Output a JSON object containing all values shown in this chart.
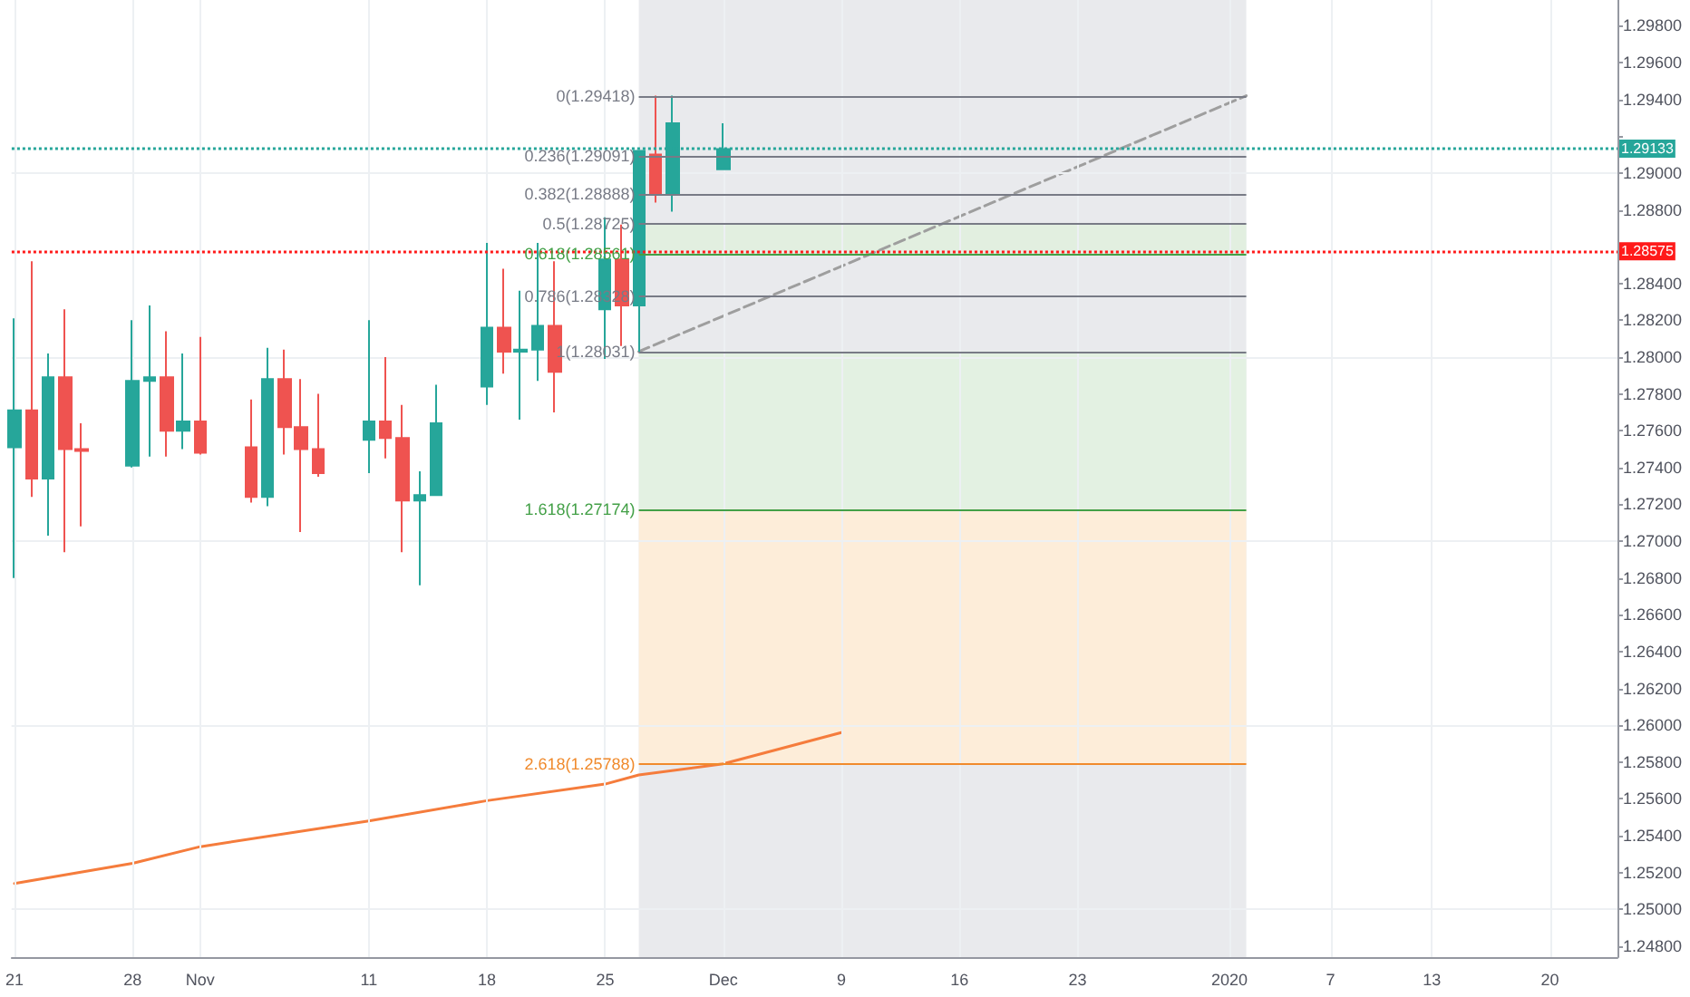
{
  "chart_data": {
    "type": "candlestick",
    "xlim": [
      "2019-10-20T20:00",
      "2020-01-24T00:00"
    ],
    "x": [
      "2019-10-21",
      "2019-10-22",
      "2019-10-23",
      "2019-10-24",
      "2019-10-25",
      "2019-10-28",
      "2019-10-29",
      "2019-10-30",
      "2019-10-31",
      "2019-11-01",
      "2019-11-04",
      "2019-11-05",
      "2019-11-06",
      "2019-11-07",
      "2019-11-08",
      "2019-11-11",
      "2019-11-12",
      "2019-11-13",
      "2019-11-14",
      "2019-11-15",
      "2019-11-18",
      "2019-11-19",
      "2019-11-20",
      "2019-11-21",
      "2019-11-22",
      "2019-11-25",
      "2019-11-26",
      "2019-11-27",
      "2019-11-28",
      "2019-11-29",
      "2019-12-02"
    ],
    "xticks": [
      {
        "value": "2019-10-21",
        "label": "21"
      },
      {
        "value": "2019-10-28",
        "label": "28"
      },
      {
        "value": "2019-11-01",
        "label": "Nov"
      },
      {
        "value": "2019-11-11",
        "label": "11"
      },
      {
        "value": "2019-11-18",
        "label": "18"
      },
      {
        "value": "2019-11-25",
        "label": "25"
      },
      {
        "value": "2019-12-02",
        "label": "Dec"
      },
      {
        "value": "2019-12-09",
        "label": "9"
      },
      {
        "value": "2019-12-16",
        "label": "16"
      },
      {
        "value": "2019-12-23",
        "label": "23"
      },
      {
        "value": "2020-01-01",
        "label": "2020"
      },
      {
        "value": "2020-01-07",
        "label": "7"
      },
      {
        "value": "2020-01-13",
        "label": "13"
      },
      {
        "value": "2020-01-20",
        "label": "20"
      }
    ],
    "ohlc": [
      [
        1.2751,
        1.2821,
        1.268,
        1.2771
      ],
      [
        1.2771,
        1.2852,
        1.2724,
        1.2734
      ],
      [
        1.2734,
        1.2802,
        1.2703,
        1.2789
      ],
      [
        1.2789,
        1.2826,
        1.2694,
        1.275
      ],
      [
        1.275,
        1.2764,
        1.2708,
        1.2749
      ],
      [
        1.2741,
        1.282,
        1.274,
        1.2787
      ],
      [
        1.2787,
        1.2828,
        1.2746,
        1.2789
      ],
      [
        1.2789,
        1.2814,
        1.2746,
        1.276
      ],
      [
        1.276,
        1.2802,
        1.275,
        1.2765
      ],
      [
        1.2765,
        1.2811,
        1.2747,
        1.2748
      ],
      [
        1.2751,
        1.2777,
        1.2721,
        1.2724
      ],
      [
        1.2724,
        1.2805,
        1.2719,
        1.2788
      ],
      [
        1.2788,
        1.2804,
        1.2747,
        1.2762
      ],
      [
        1.2762,
        1.2788,
        1.2705,
        1.275
      ],
      [
        1.275,
        1.278,
        1.2735,
        1.2737
      ],
      [
        1.2755,
        1.282,
        1.2737,
        1.2765
      ],
      [
        1.2765,
        1.28,
        1.2745,
        1.2756
      ],
      [
        1.2756,
        1.2774,
        1.2694,
        1.2722
      ],
      [
        1.2722,
        1.2738,
        1.2676,
        1.2725
      ],
      [
        1.2725,
        1.2785,
        1.2725,
        1.2764
      ],
      [
        1.2784,
        1.2862,
        1.2774,
        1.2816
      ],
      [
        1.2816,
        1.2848,
        1.2791,
        1.2803
      ],
      [
        1.2803,
        1.2836,
        1.2766,
        1.2804
      ],
      [
        1.2804,
        1.2862,
        1.2787,
        1.2817
      ],
      [
        1.2817,
        1.2852,
        1.277,
        1.2792
      ],
      [
        1.2826,
        1.2876,
        1.2799,
        1.2853
      ],
      [
        1.2853,
        1.2872,
        1.2806,
        1.2828
      ],
      [
        1.2828,
        1.2912,
        1.2803,
        1.2912
      ],
      [
        1.291,
        1.2942,
        1.2884,
        1.2889
      ],
      [
        1.2889,
        1.2942,
        1.2879,
        1.2927
      ],
      [
        1.2902,
        1.2927,
        1.2902,
        1.2913
      ]
    ],
    "colors": [
      "#26a69a",
      "#ef5350",
      "#26a69a",
      "#ef5350",
      "#ef5350",
      "#26a69a",
      "#26a69a",
      "#ef5350",
      "#26a69a",
      "#ef5350",
      "#ef5350",
      "#26a69a",
      "#ef5350",
      "#ef5350",
      "#ef5350",
      "#26a69a",
      "#ef5350",
      "#ef5350",
      "#26a69a",
      "#26a69a",
      "#26a69a",
      "#ef5350",
      "#26a69a",
      "#26a69a",
      "#ef5350",
      "#26a69a",
      "#ef5350",
      "#26a69a",
      "#ef5350",
      "#26a69a",
      "#26a69a"
    ],
    "series": [
      {
        "type": "line",
        "color": "#f57c3c",
        "x": [
          "2019-10-21",
          "2019-10-28",
          "2019-11-01",
          "2019-11-11",
          "2019-11-18",
          "2019-11-25",
          "2019-11-27",
          "2019-12-02",
          "2019-12-09"
        ],
        "values": [
          1.2514,
          1.2525,
          1.2534,
          1.2548,
          1.2559,
          1.2568,
          1.2573,
          1.2579,
          1.2596
        ]
      },
      {
        "type": "line",
        "color": "#9e9e9e",
        "line_style": "dashed",
        "x": [
          "2019-11-27",
          "2020-01-02"
        ],
        "values": [
          1.2803,
          1.2942
        ]
      }
    ],
    "ylim": [
      1.2474,
      1.2994
    ],
    "yticks": [
      {
        "value": 1.248,
        "label": "1.24800"
      },
      {
        "value": 1.25,
        "label": "1.25000"
      },
      {
        "value": 1.252,
        "label": "1.25200"
      },
      {
        "value": 1.254,
        "label": "1.25400"
      },
      {
        "value": 1.256,
        "label": "1.25600"
      },
      {
        "value": 1.258,
        "label": "1.25800"
      },
      {
        "value": 1.26,
        "label": "1.26000"
      },
      {
        "value": 1.262,
        "label": "1.26200"
      },
      {
        "value": 1.264,
        "label": "1.26400"
      },
      {
        "value": 1.266,
        "label": "1.26600"
      },
      {
        "value": 1.268,
        "label": "1.26800"
      },
      {
        "value": 1.27,
        "label": "1.27000"
      },
      {
        "value": 1.272,
        "label": "1.27200"
      },
      {
        "value": 1.274,
        "label": "1.27400"
      },
      {
        "value": 1.276,
        "label": "1.27600"
      },
      {
        "value": 1.278,
        "label": "1.27800"
      },
      {
        "value": 1.28,
        "label": "1.28000"
      },
      {
        "value": 1.282,
        "label": "1.28200"
      },
      {
        "value": 1.284,
        "label": "1.28400"
      },
      {
        "value": 1.286,
        "label": null
      },
      {
        "value": 1.288,
        "label": "1.28800"
      },
      {
        "value": 1.29,
        "label": "1.29000"
      },
      {
        "value": 1.292,
        "label": null
      },
      {
        "value": 1.294,
        "label": "1.29400"
      },
      {
        "value": 1.296,
        "label": "1.29600"
      },
      {
        "value": 1.298,
        "label": "1.29800"
      }
    ],
    "grid": true,
    "marker": "none",
    "bands": [
      {
        "axis": "x",
        "from": "2019-11-27",
        "to": "2020-01-02",
        "color": "#e9eaed"
      },
      {
        "axis": "y",
        "from": 1.28725,
        "to": 1.28561,
        "color": "#e2efe0"
      },
      {
        "axis": "y",
        "from": 1.28031,
        "to": 1.27174,
        "color": "#e3f1e2"
      },
      {
        "axis": "y",
        "from": 1.27174,
        "to": 1.25788,
        "color": "#fdedd9"
      }
    ],
    "ref_lines": [
      {
        "axis": "y",
        "value": 1.29418,
        "label": "0(1.29418)",
        "color": "#787b86"
      },
      {
        "axis": "y",
        "value": 1.29091,
        "label": "0.236(1.29091)",
        "color": "#787b86"
      },
      {
        "axis": "y",
        "value": 1.28888,
        "label": "0.382(1.28888)",
        "color": "#787b86"
      },
      {
        "axis": "y",
        "value": 1.28725,
        "label": "0.5(1.28725)",
        "color": "#787b86"
      },
      {
        "axis": "y",
        "value": 1.28561,
        "label": "0.618(1.28561)",
        "color": "#43a047"
      },
      {
        "axis": "y",
        "value": 1.28328,
        "label": "0.786(1.28328)",
        "color": "#787b86"
      },
      {
        "axis": "y",
        "value": 1.28031,
        "label": "1(1.28031)",
        "color": "#787b86"
      },
      {
        "axis": "y",
        "value": 1.27174,
        "label": "1.618(1.27174)",
        "color": "#43a047"
      },
      {
        "axis": "y",
        "value": 1.25788,
        "label": "2.618(1.25788)",
        "color": "#f08a2c"
      },
      {
        "axis": "y",
        "value": 1.29133,
        "label": "1.29133",
        "color": "#26a69a",
        "line_style": "dotted"
      },
      {
        "axis": "y",
        "value": 1.28575,
        "label": "1.28575",
        "color": "#ff1a1a",
        "line_style": "dotted"
      }
    ]
  }
}
